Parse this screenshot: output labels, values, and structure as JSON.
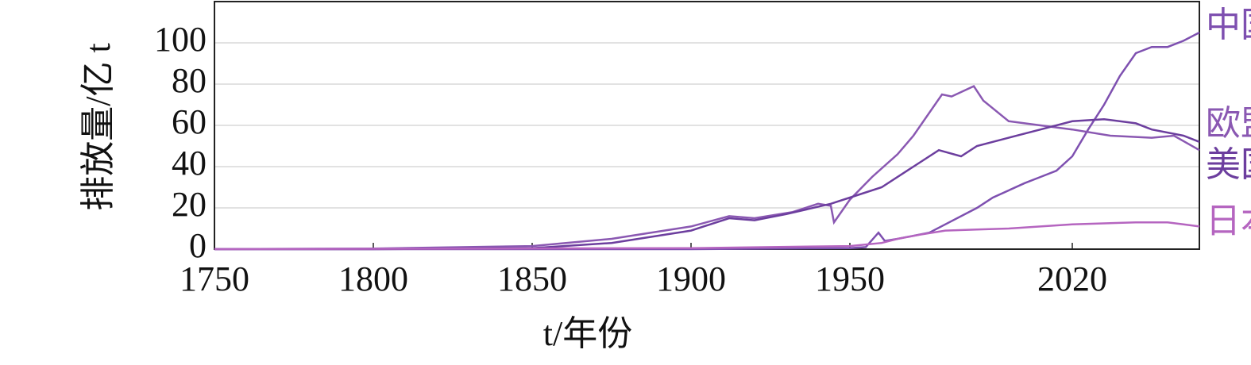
{
  "chart_data": {
    "type": "line",
    "x_label": "t/年份",
    "y_label": "排放量/亿 t",
    "xlim": [
      1750,
      2060
    ],
    "xticks": [
      1750,
      1800,
      1850,
      1900,
      1950,
      2020
    ],
    "ylim": [
      0,
      120
    ],
    "yticks": [
      0,
      20,
      40,
      60,
      80,
      100
    ],
    "grid": true,
    "series": [
      {
        "name": "中国",
        "color": "#7e50b0",
        "x": [
          1750,
          1900,
          1950,
          1955,
          1959,
          1961,
          1965,
          1975,
          1980,
          1990,
          1995,
          2005,
          2010,
          2015,
          2020,
          2025,
          2030,
          2035,
          2040,
          2045,
          2050,
          2055,
          2060
        ],
        "values": [
          0,
          0,
          0.5,
          1,
          8,
          4,
          5,
          8,
          12,
          20,
          25,
          32,
          35,
          38,
          45,
          58,
          70,
          84,
          95,
          98,
          98,
          101,
          105
        ]
      },
      {
        "name": "欧盟",
        "color": "#8a58b2",
        "x": [
          1750,
          1800,
          1850,
          1875,
          1900,
          1912,
          1920,
          1932,
          1940,
          1944,
          1945,
          1950,
          1957,
          1965,
          1970,
          1979,
          1982,
          1989,
          1992,
          2000,
          2010,
          2020,
          2032,
          2045,
          2052,
          2060
        ],
        "values": [
          0,
          0.3,
          1.5,
          5,
          11,
          16,
          15,
          18,
          22,
          21,
          13,
          24,
          35,
          46,
          55,
          75,
          74,
          79,
          72,
          62,
          60,
          58,
          55,
          54,
          55,
          48
        ]
      },
      {
        "name": "美国",
        "color": "#6c3e9e",
        "x": [
          1750,
          1800,
          1850,
          1875,
          1900,
          1912,
          1920,
          1930,
          1944,
          1950,
          1960,
          1970,
          1978,
          1985,
          1990,
          2000,
          2010,
          2020,
          2030,
          2040,
          2045,
          2055,
          2060
        ],
        "values": [
          0,
          0,
          0.5,
          3,
          9,
          15,
          14,
          17,
          22,
          25,
          30,
          40,
          48,
          45,
          50,
          54,
          58,
          62,
          63,
          61,
          58,
          55,
          52
        ]
      },
      {
        "name": "日本",
        "color": "#b565c0",
        "x": [
          1750,
          1900,
          1950,
          1960,
          1965,
          1972,
          1980,
          1990,
          2000,
          2010,
          2020,
          2030,
          2040,
          2050,
          2055,
          2060
        ],
        "values": [
          0,
          0.5,
          1.5,
          3,
          5,
          7,
          9,
          9.5,
          10,
          11,
          12,
          12.5,
          13,
          13,
          12,
          11
        ]
      }
    ]
  }
}
